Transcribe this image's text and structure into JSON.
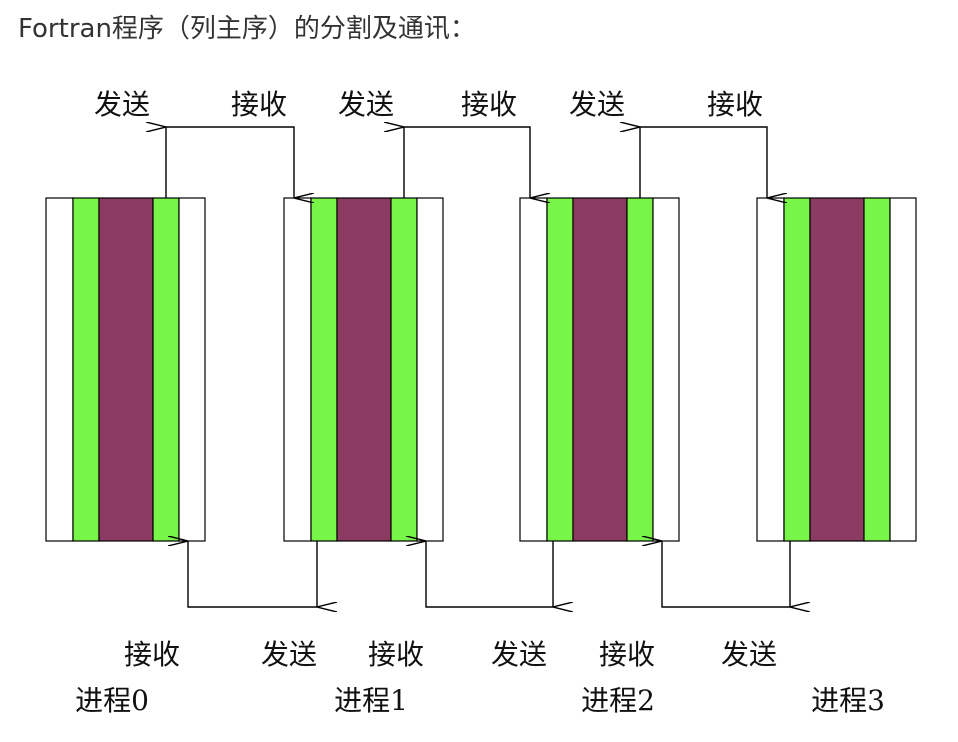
{
  "title": "Fortran程序（列主序）的分割及通讯：",
  "colors": {
    "interior": "#8b3a62",
    "halo": "#77f548",
    "edge": "#ffffff",
    "stroke": "#000000"
  },
  "processes": [
    {
      "label": "进程0",
      "top_send": "发送",
      "top_recv": "接收",
      "bottom_recv": "接收",
      "bottom_send": ""
    },
    {
      "label": "进程1",
      "top_send": "发送",
      "top_recv": "接收",
      "bottom_recv": "接收",
      "bottom_send": "发送"
    },
    {
      "label": "进程2",
      "top_send": "发送",
      "top_recv": "接收",
      "bottom_recv": "接收",
      "bottom_send": "发送"
    },
    {
      "label": "进程3",
      "top_send": "",
      "top_recv": "",
      "bottom_recv": "",
      "bottom_send": "发送"
    }
  ]
}
